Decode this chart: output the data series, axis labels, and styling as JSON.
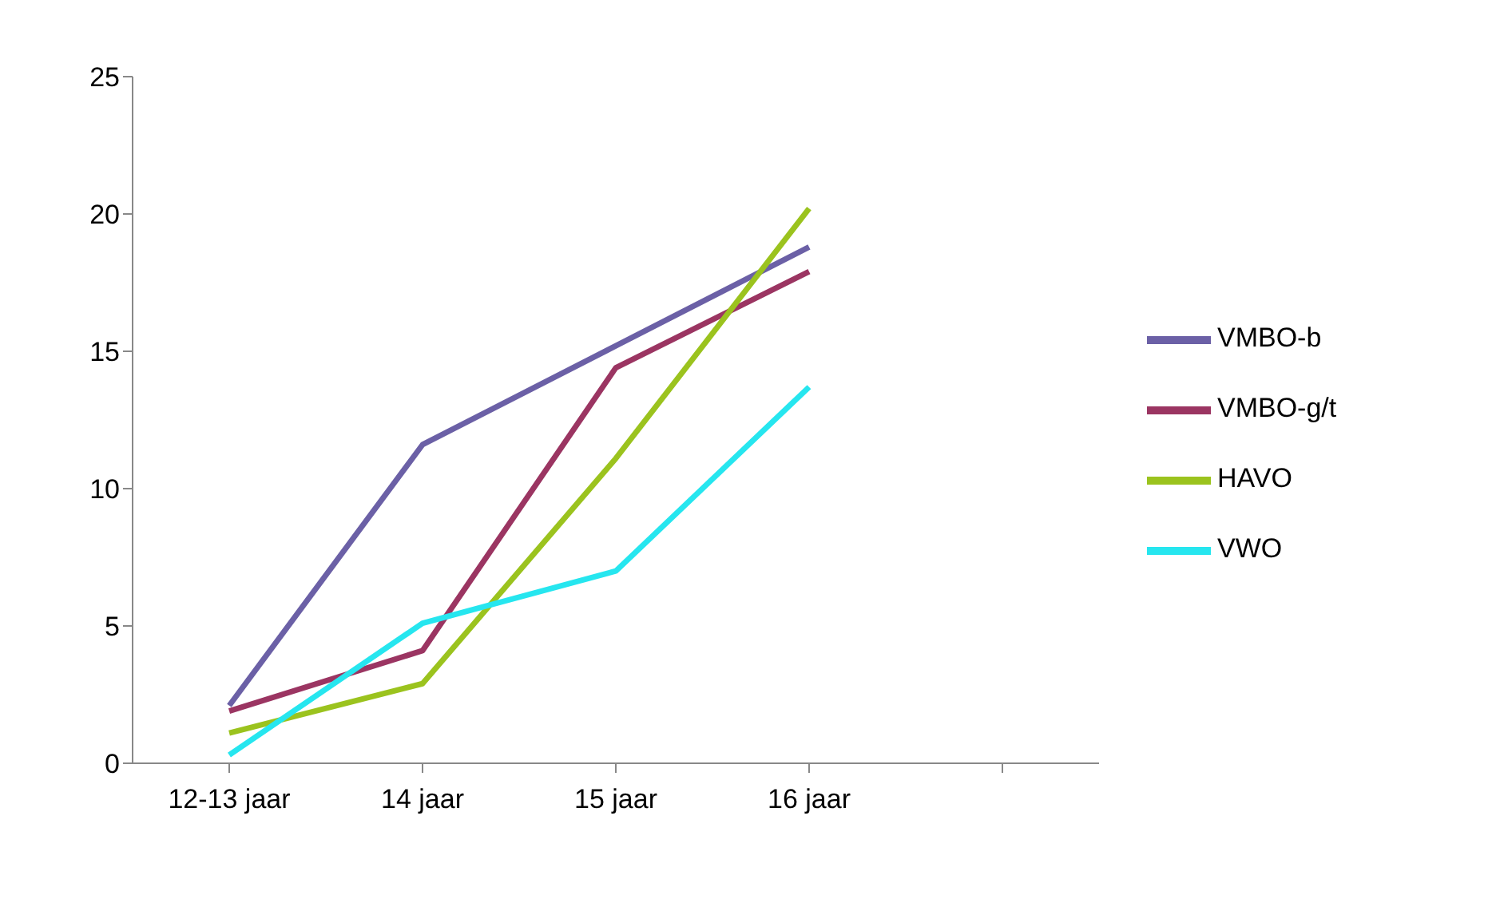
{
  "chart_data": {
    "type": "line",
    "categories": [
      "12-13 jaar",
      "14 jaar",
      "15 jaar",
      "16 jaar",
      null
    ],
    "series": [
      {
        "name": "VMBO-b",
        "color": "#6b60a6",
        "values": [
          2.1,
          11.6,
          15.2,
          18.8,
          null
        ]
      },
      {
        "name": "VMBO-g/t",
        "color": "#9b3562",
        "values": [
          1.9,
          4.1,
          14.4,
          17.9,
          null
        ]
      },
      {
        "name": "HAVO",
        "color": "#9bc31e",
        "values": [
          1.1,
          2.9,
          11.1,
          20.2,
          null
        ]
      },
      {
        "name": "VWO",
        "color": "#26e6ef",
        "values": [
          0.3,
          5.1,
          7.0,
          13.7,
          null
        ]
      }
    ],
    "ylim": [
      0,
      25
    ],
    "yticks": [
      0,
      5,
      10,
      15,
      20,
      25
    ],
    "grid": false,
    "legend": "right",
    "marker": "none",
    "line_style": "solid"
  }
}
